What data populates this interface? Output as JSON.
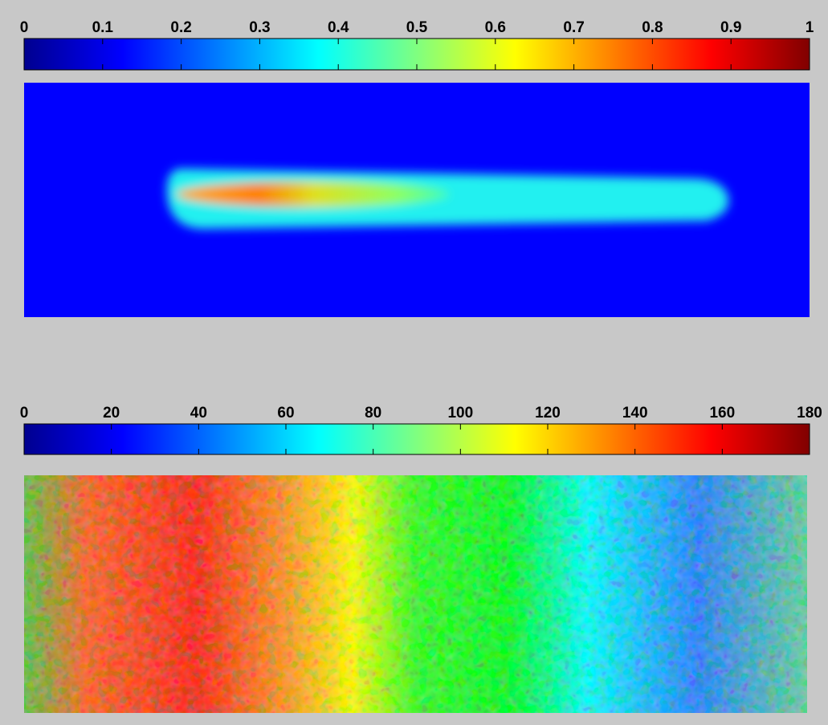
{
  "chart_data": [
    {
      "type": "heatmap",
      "colorbar_lim": [
        0,
        1
      ],
      "colorbar_ticks": [
        0,
        0.1,
        0.2,
        0.3,
        0.4,
        0.5,
        0.6,
        0.7,
        0.8,
        0.9,
        1
      ]
    },
    {
      "type": "heatmap",
      "colorbar_lim": [
        0,
        180
      ],
      "colorbar_ticks": [
        0,
        20,
        40,
        60,
        80,
        100,
        120,
        140,
        160,
        180
      ]
    }
  ]
}
